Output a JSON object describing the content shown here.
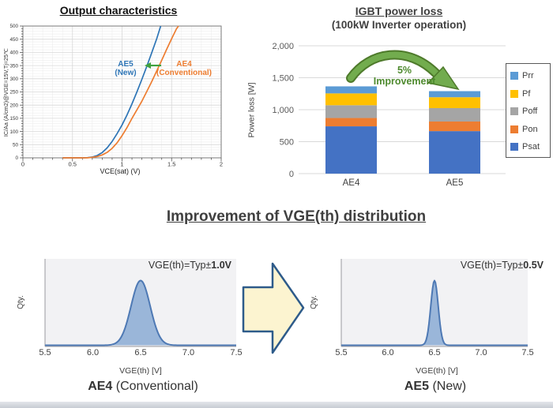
{
  "output_chart": {
    "title": "Output characteristics",
    "xlabel": "VCE(sat) (V)",
    "ylabel": "IC/Aa (A/cm2)@VGE=15V,Tj=25℃",
    "ae5_line1": "AE5",
    "ae5_line2": "(New)",
    "ae4_line1": "AE4",
    "ae4_line2": "(Conventional)"
  },
  "power_chart": {
    "title": "IGBT power loss",
    "subtitle": "(100kW Inverter operation)",
    "ylabel": "Power loss [W]",
    "annotation_line1": "5%",
    "annotation_line2": "Improvement"
  },
  "distribution_section": {
    "title": "Improvement of VGE(th) distribution",
    "left": {
      "annotation_prefix": "VGE(th)=Typ±",
      "annotation_value": "1.0V",
      "ylabel": "Qty.",
      "xlabel": "VGE(th) [V]",
      "caption_bold": "AE4",
      "caption_rest": " (Conventional)"
    },
    "right": {
      "annotation_prefix": "VGE(th)=Typ±",
      "annotation_value": "0.5V",
      "ylabel": "Qty.",
      "xlabel": "VGE(th) [V]",
      "caption_bold": "AE5",
      "caption_rest": " (New)"
    }
  },
  "chart_data": [
    {
      "type": "line",
      "title": "Output characteristics",
      "xlabel": "VCE(sat) (V)",
      "ylabel": "IC/Aa (A/cm2)@VGE=15V,Tj=25℃",
      "xlim": [
        0,
        2
      ],
      "ylim": [
        0,
        500
      ],
      "grid": true,
      "x_ticks": [
        "0",
        "0.5",
        "1",
        "1.5",
        "2"
      ],
      "x_tick_vals": [
        0,
        0.5,
        1,
        1.5,
        2
      ],
      "y_ticks": [
        "0",
        "50",
        "100",
        "150",
        "200",
        "250",
        "300",
        "350",
        "400",
        "450",
        "500"
      ],
      "series": [
        {
          "name": "AE5 (New)",
          "color": "#2E75B6",
          "points": [
            [
              0.4,
              0
            ],
            [
              0.6,
              0
            ],
            [
              0.65,
              1
            ],
            [
              0.7,
              3
            ],
            [
              0.75,
              9
            ],
            [
              0.8,
              20
            ],
            [
              0.85,
              38
            ],
            [
              0.9,
              62
            ],
            [
              0.95,
              92
            ],
            [
              1.0,
              125
            ],
            [
              1.05,
              163
            ],
            [
              1.1,
              205
            ],
            [
              1.15,
              250
            ],
            [
              1.2,
              298
            ],
            [
              1.25,
              348
            ],
            [
              1.3,
              400
            ],
            [
              1.35,
              452
            ],
            [
              1.39,
              500
            ]
          ]
        },
        {
          "name": "AE4 (Conventional)",
          "color": "#ED7D31",
          "points": [
            [
              0.4,
              0
            ],
            [
              0.65,
              0
            ],
            [
              0.7,
              2
            ],
            [
              0.75,
              5
            ],
            [
              0.8,
              11
            ],
            [
              0.85,
              21
            ],
            [
              0.9,
              36
            ],
            [
              0.95,
              57
            ],
            [
              1.0,
              84
            ],
            [
              1.05,
              115
            ],
            [
              1.1,
              150
            ],
            [
              1.15,
              182
            ],
            [
              1.2,
              215
            ],
            [
              1.25,
              252
            ],
            [
              1.3,
              290
            ],
            [
              1.35,
              330
            ],
            [
              1.4,
              370
            ],
            [
              1.45,
              412
            ],
            [
              1.5,
              452
            ],
            [
              1.55,
              490
            ],
            [
              1.57,
              500
            ]
          ]
        }
      ]
    },
    {
      "type": "bar",
      "stacked": true,
      "title": "IGBT power loss",
      "subtitle": "(100kW Inverter operation)",
      "ylabel": "Power loss [W]",
      "ylim": [
        0,
        2000
      ],
      "grid": true,
      "legend_position": "right",
      "y_ticks": [
        "0",
        "500",
        "1,000",
        "1,500",
        "2,000"
      ],
      "y_tick_vals": [
        0,
        500,
        1000,
        1500,
        2000
      ],
      "categories": [
        "AE4",
        "AE5"
      ],
      "series": [
        {
          "name": "Psat",
          "color": "#4472C4",
          "values": [
            740,
            665
          ]
        },
        {
          "name": "Pon",
          "color": "#ED7D31",
          "values": [
            130,
            150
          ]
        },
        {
          "name": "Poff",
          "color": "#A5A5A5",
          "values": [
            200,
            210
          ]
        },
        {
          "name": "Pf",
          "color": "#FFC000",
          "values": [
            185,
            170
          ]
        },
        {
          "name": "Prr",
          "color": "#5B9BD5",
          "values": [
            110,
            95
          ]
        }
      ],
      "totals": [
        1365,
        1290
      ],
      "annotation": "5% Improvement",
      "legend": [
        {
          "label": "Prr",
          "color": "#5B9BD5"
        },
        {
          "label": "Pf",
          "color": "#FFC000"
        },
        {
          "label": "Poff",
          "color": "#A5A5A5"
        },
        {
          "label": "Pon",
          "color": "#ED7D31"
        },
        {
          "label": "Psat",
          "color": "#4472C4"
        }
      ]
    },
    {
      "type": "area",
      "title": "AE4 (Conventional)",
      "xlabel": "VGE(th) [V]",
      "ylabel": "Qty.",
      "xlim": [
        5.5,
        7.5
      ],
      "x_ticks": [
        "5.5",
        "6.0",
        "6.5",
        "7.0",
        "7.5"
      ],
      "annotation": "VGE(th)=Typ±1.0V",
      "peak_center": 6.5,
      "peak_sigma": 0.1,
      "fill_color": "#8BABD3",
      "line_color": "#4E79B4"
    },
    {
      "type": "area",
      "title": "AE5 (New)",
      "xlabel": "VGE(th) [V]",
      "ylabel": "Qty.",
      "xlim": [
        5.5,
        7.5
      ],
      "x_ticks": [
        "5.5",
        "6.0",
        "6.5",
        "7.0",
        "7.5"
      ],
      "annotation": "VGE(th)=Typ±0.5V",
      "peak_center": 6.5,
      "peak_sigma": 0.04,
      "fill_color": "#8BABD3",
      "line_color": "#4E79B4"
    }
  ]
}
